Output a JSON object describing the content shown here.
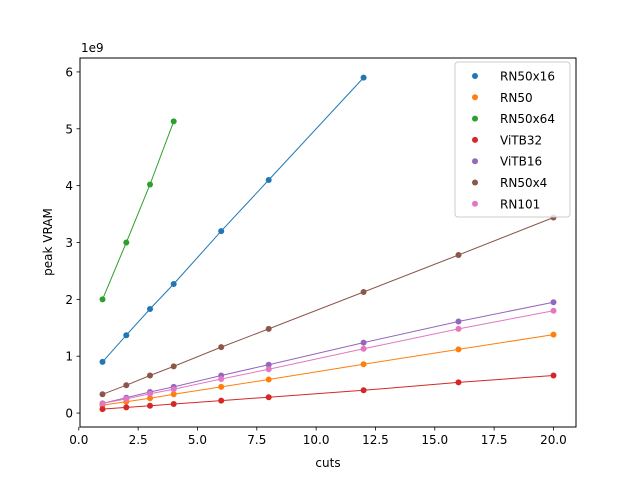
{
  "chart_data": {
    "type": "scatter",
    "title": "",
    "xlabel": "cuts",
    "ylabel": "peak VRAM",
    "y_offset_text": "1e9",
    "y_scale": 1000000000,
    "xlim": [
      0.05,
      20.95
    ],
    "ylim": [
      -0.245,
      6.245
    ],
    "x_ticks": [
      0,
      2.5,
      5,
      7.5,
      10,
      12.5,
      15,
      17.5,
      20
    ],
    "x_tick_labels": [
      "0.0",
      "2.5",
      "5.0",
      "7.5",
      "10.0",
      "12.5",
      "15.0",
      "17.5",
      "20.0"
    ],
    "y_ticks": [
      0,
      1,
      2,
      3,
      4,
      5,
      6
    ],
    "y_tick_labels": [
      "0",
      "1",
      "2",
      "3",
      "4",
      "5",
      "6"
    ],
    "legend_position": "top-right",
    "grid": false,
    "series": [
      {
        "name": "RN50x16",
        "color": "#1f77b4",
        "x": [
          1,
          2,
          3,
          4,
          6,
          8,
          12
        ],
        "y": [
          0.9,
          1.37,
          1.83,
          2.27,
          3.2,
          4.1,
          5.9
        ]
      },
      {
        "name": "RN50",
        "color": "#ff7f0e",
        "x": [
          1,
          2,
          3,
          4,
          6,
          8,
          12,
          16,
          20
        ],
        "y": [
          0.14,
          0.2,
          0.26,
          0.33,
          0.46,
          0.59,
          0.86,
          1.12,
          1.38
        ]
      },
      {
        "name": "RN50x64",
        "color": "#2ca02c",
        "x": [
          1,
          2,
          3,
          4
        ],
        "y": [
          2.0,
          3.0,
          4.02,
          5.13
        ]
      },
      {
        "name": "ViTB32",
        "color": "#d62728",
        "x": [
          1,
          2,
          3,
          4,
          6,
          8,
          12,
          16,
          20
        ],
        "y": [
          0.07,
          0.1,
          0.13,
          0.16,
          0.22,
          0.28,
          0.4,
          0.54,
          0.66
        ]
      },
      {
        "name": "ViTB16",
        "color": "#9467bd",
        "x": [
          1,
          2,
          3,
          4,
          6,
          8,
          12,
          16,
          20
        ],
        "y": [
          0.17,
          0.27,
          0.37,
          0.46,
          0.66,
          0.85,
          1.24,
          1.61,
          1.95
        ]
      },
      {
        "name": "RN50x4",
        "color": "#8c564b",
        "x": [
          1,
          2,
          3,
          4,
          6,
          8,
          12,
          16,
          20
        ],
        "y": [
          0.33,
          0.49,
          0.66,
          0.82,
          1.16,
          1.48,
          2.13,
          2.78,
          3.44
        ]
      },
      {
        "name": "RN101",
        "color": "#e377c2",
        "x": [
          1,
          2,
          3,
          4,
          6,
          8,
          12,
          16,
          20
        ],
        "y": [
          0.17,
          0.25,
          0.34,
          0.42,
          0.6,
          0.77,
          1.13,
          1.48,
          1.8
        ]
      }
    ]
  }
}
